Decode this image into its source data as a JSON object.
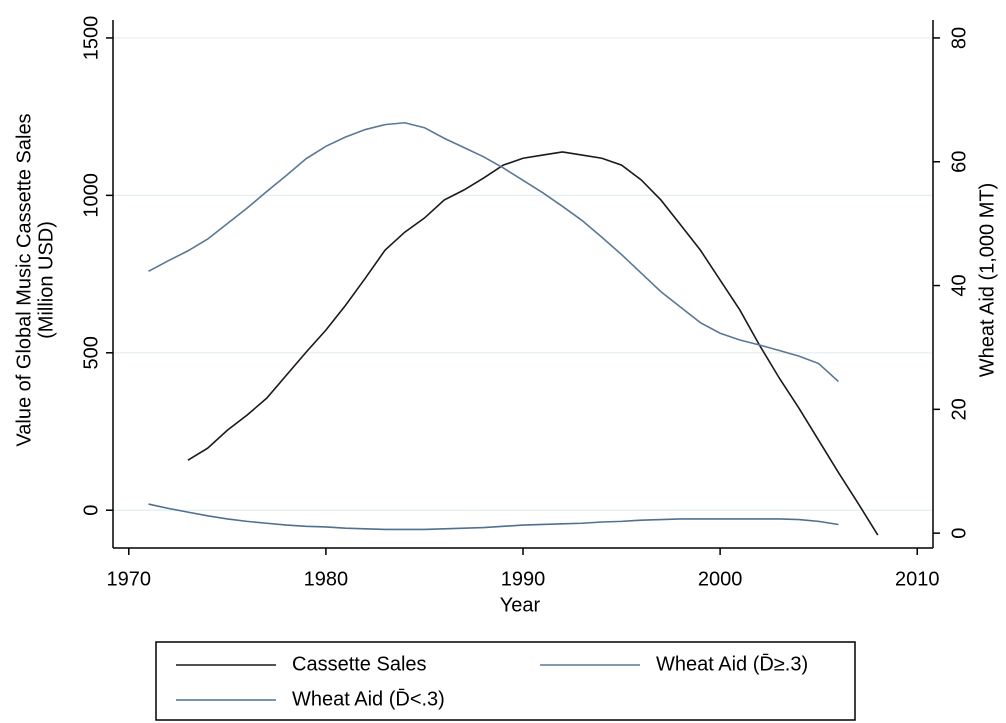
{
  "chart_data": {
    "type": "line",
    "xlabel": "Year",
    "ylabel": [
      "Value of Global Music Cassette Sales",
      "(Million USD)"
    ],
    "y2label": "Wheat Aid (1,000 MT)",
    "xlim": [
      1969.2,
      2010.8
    ],
    "xticks": [
      1970,
      1980,
      1990,
      2000,
      2010
    ],
    "ylim": [
      -120,
      1557
    ],
    "yticks": [
      0,
      500,
      1000,
      1500
    ],
    "y2lim": [
      -2.4,
      82.9
    ],
    "y2ticks": [
      0,
      20,
      40,
      60,
      80
    ],
    "grid": true,
    "legend": "bottom",
    "series": [
      {
        "name": "Cassette Sales",
        "color": "#1a1a1a",
        "x": [
          1973,
          1974,
          1975,
          1976,
          1977,
          1978,
          1979,
          1980,
          1981,
          1982,
          1983,
          1984,
          1985,
          1986,
          1987,
          1988,
          1989,
          1990,
          1991,
          1992,
          1993,
          1994,
          1995,
          1996,
          1997,
          1998,
          1999,
          2000,
          2001,
          2002,
          2003,
          2004,
          2005,
          2006,
          2007,
          2008
        ],
        "values": [
          159,
          197,
          254,
          302,
          356,
          429,
          502,
          572,
          651,
          737,
          826,
          883,
          928,
          985,
          1017,
          1055,
          1096,
          1118,
          1128,
          1138,
          1128,
          1118,
          1096,
          1049,
          985,
          906,
          826,
          731,
          636,
          524,
          420,
          324,
          222,
          120,
          22,
          -79
        ]
      },
      {
        "name": "Wheat Aid (D̄≥.3)",
        "color": "#5a7896",
        "axis": "y2",
        "x": [
          1971,
          1972,
          1973,
          1974,
          1975,
          1976,
          1977,
          1978,
          1979,
          1980,
          1981,
          1982,
          1983,
          1984,
          1985,
          1986,
          1987,
          1988,
          1989,
          1990,
          1991,
          1992,
          1993,
          1994,
          1995,
          1996,
          1997,
          1998,
          1999,
          2000,
          2001,
          2002,
          2003,
          2004,
          2005,
          2006
        ],
        "values": [
          42.3,
          44,
          45.6,
          47.5,
          50,
          52.5,
          55.2,
          57.8,
          60.5,
          62.5,
          64,
          65.2,
          66,
          66.3,
          65.5,
          63.8,
          62.3,
          60.8,
          59,
          57,
          55,
          52.8,
          50.5,
          47.8,
          45,
          42,
          39,
          36.5,
          34,
          32.3,
          31.2,
          30.4,
          29.5,
          28.6,
          27.4,
          24.5
        ]
      },
      {
        "name": "Wheat Aid (D̄<.3)",
        "color": "#4f7090",
        "axis": "y2",
        "x": [
          1971,
          1972,
          1973,
          1974,
          1975,
          1976,
          1977,
          1978,
          1979,
          1980,
          1981,
          1982,
          1983,
          1984,
          1985,
          1986,
          1987,
          1988,
          1989,
          1990,
          1991,
          1992,
          1993,
          1994,
          1995,
          1996,
          1997,
          1998,
          1999,
          2000,
          2001,
          2002,
          2003,
          2004,
          2005,
          2006
        ],
        "values": [
          4.7,
          4.0,
          3.4,
          2.8,
          2.3,
          1.9,
          1.6,
          1.3,
          1.1,
          1.0,
          0.8,
          0.7,
          0.6,
          0.6,
          0.6,
          0.7,
          0.8,
          0.9,
          1.1,
          1.3,
          1.4,
          1.5,
          1.6,
          1.8,
          1.9,
          2.1,
          2.2,
          2.3,
          2.3,
          2.3,
          2.3,
          2.3,
          2.3,
          2.2,
          1.9,
          1.4
        ]
      }
    ]
  }
}
